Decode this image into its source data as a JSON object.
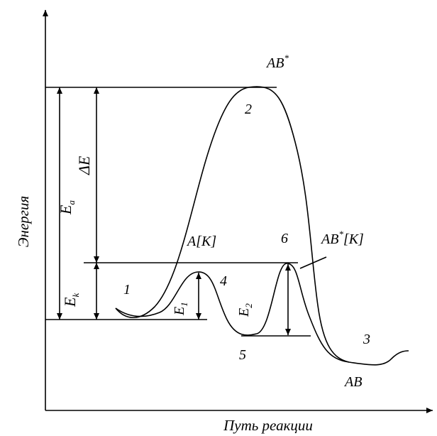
{
  "axes": {
    "y_title": "Энергия",
    "x_title": "Путь реакции"
  },
  "labels": {
    "ab_star": {
      "base": "AB",
      "sup": "*"
    },
    "n2": "2",
    "ea": {
      "base": "E",
      "sub": "a"
    },
    "delta_e": "ΔE",
    "a_k": "A[K]",
    "n6": "6",
    "ab_star_k": {
      "base": "AB",
      "sup": "*",
      "tail": "[K]"
    },
    "n1": "1",
    "n4": "4",
    "ek": {
      "base": "E",
      "sub": "k"
    },
    "e1": {
      "base": "E",
      "sub": "1"
    },
    "e2": {
      "base": "E",
      "sub": "2"
    },
    "n5": "5",
    "n3": "3",
    "ab": "AB"
  },
  "colors": {
    "ink": "#000000",
    "background": "#ffffff"
  }
}
